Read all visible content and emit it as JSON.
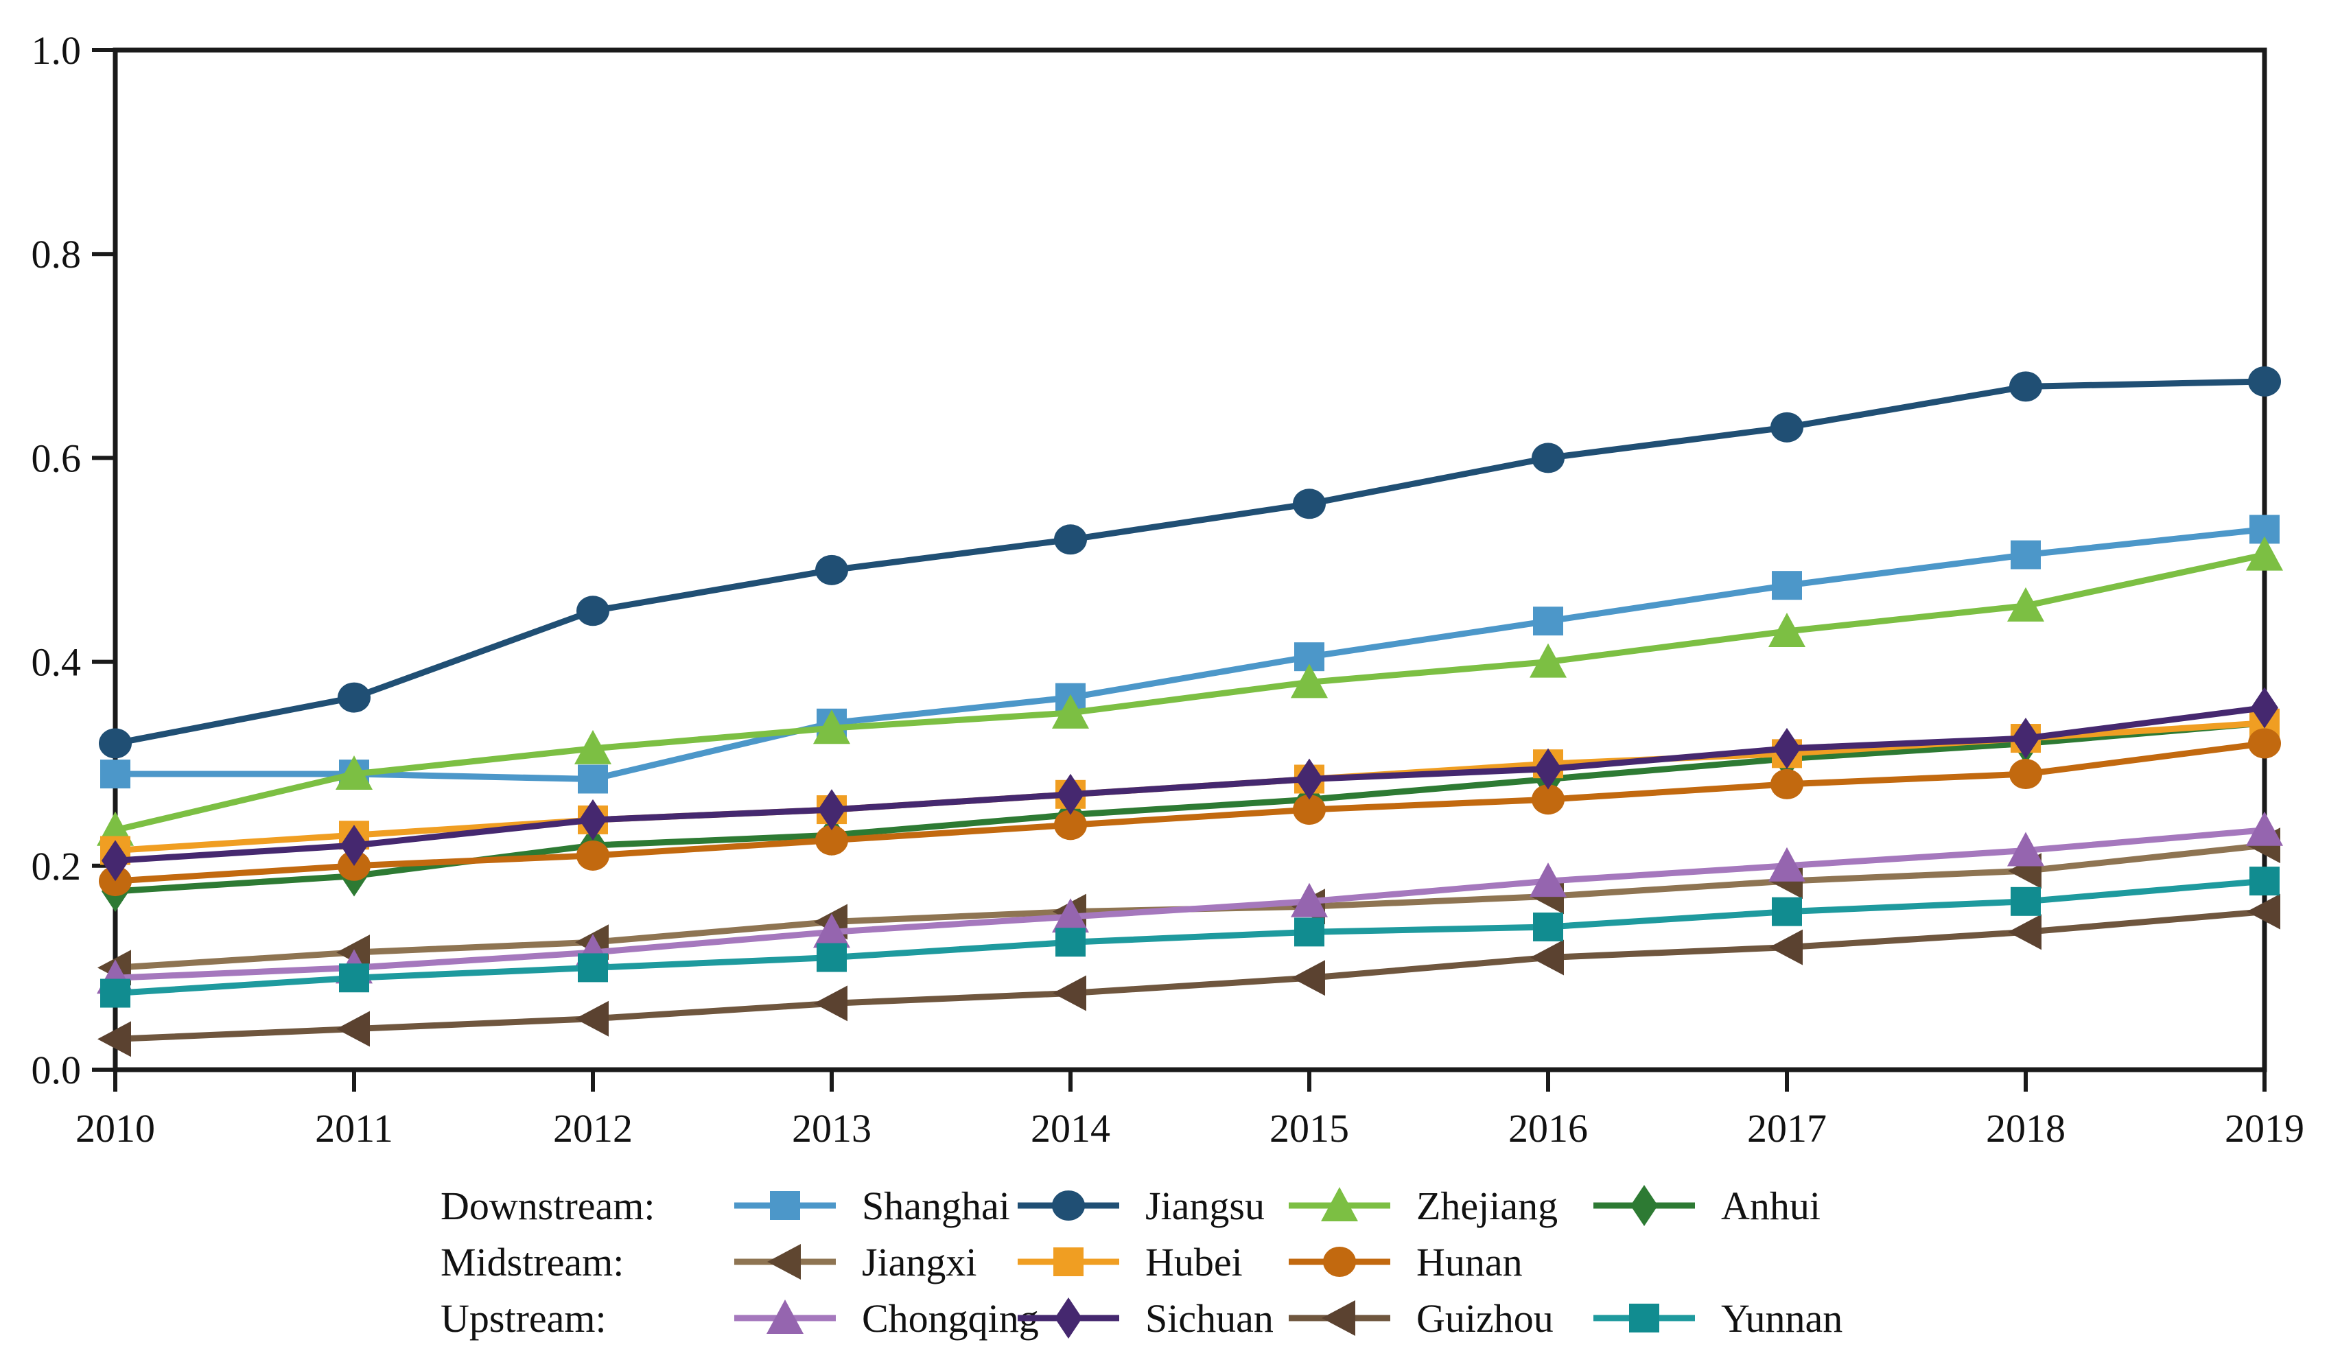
{
  "figure": {
    "background": "#ffffff",
    "text_color": "#111111",
    "axis_color": "#1a1a1a"
  },
  "chart_data": {
    "type": "line",
    "title": "",
    "xlabel": "",
    "ylabel": "",
    "grid": false,
    "legend_position": "bottom",
    "ylim": [
      0,
      1
    ],
    "x": [
      "2010",
      "2011",
      "2012",
      "2013",
      "2014",
      "2015",
      "2016",
      "2017",
      "2018",
      "2019"
    ],
    "yticks": [
      {
        "v": 0.0,
        "label": "0.0"
      },
      {
        "v": 0.2,
        "label": "0.2"
      },
      {
        "v": 0.4,
        "label": "0.4"
      },
      {
        "v": 0.6,
        "label": "0.6"
      },
      {
        "v": 0.8,
        "label": "0.8"
      },
      {
        "v": 1.0,
        "label": "1.0"
      }
    ],
    "groups": [
      {
        "label": "Downstream:",
        "series": [
          {
            "name": "Shanghai",
            "marker": "square",
            "color": "#4C97C9",
            "marker_color": "#4C97C9",
            "values": [
              0.29,
              0.29,
              0.285,
              0.34,
              0.365,
              0.405,
              0.44,
              0.475,
              0.505,
              0.53
            ]
          },
          {
            "name": "Jiangsu",
            "marker": "circle",
            "color": "#204F74",
            "marker_color": "#204F74",
            "values": [
              0.32,
              0.365,
              0.45,
              0.49,
              0.52,
              0.555,
              0.6,
              0.63,
              0.67,
              0.675
            ]
          },
          {
            "name": "Zhejiang",
            "marker": "triangle",
            "color": "#7CBF43",
            "marker_color": "#7CBF43",
            "values": [
              0.235,
              0.29,
              0.315,
              0.335,
              0.35,
              0.38,
              0.4,
              0.43,
              0.455,
              0.505
            ]
          },
          {
            "name": "Anhui",
            "marker": "diamond",
            "color": "#2D7A33",
            "marker_color": "#2D7A33",
            "values": [
              0.175,
              0.19,
              0.22,
              0.23,
              0.25,
              0.265,
              0.285,
              0.305,
              0.32,
              0.34
            ]
          }
        ]
      },
      {
        "label": "Midstream:",
        "series": [
          {
            "name": "Jiangxi",
            "marker": "triangle-left",
            "color": "#8E7452",
            "marker_color": "#5F4630",
            "values": [
              0.1,
              0.115,
              0.125,
              0.145,
              0.155,
              0.16,
              0.17,
              0.185,
              0.195,
              0.22
            ]
          },
          {
            "name": "Hubei",
            "marker": "square",
            "color": "#F09E22",
            "marker_color": "#F09E22",
            "values": [
              0.215,
              0.23,
              0.245,
              0.255,
              0.27,
              0.285,
              0.3,
              0.31,
              0.325,
              0.34
            ]
          },
          {
            "name": "Hunan",
            "marker": "circle",
            "color": "#C2690F",
            "marker_color": "#C2690F",
            "values": [
              0.185,
              0.2,
              0.21,
              0.225,
              0.24,
              0.255,
              0.265,
              0.28,
              0.29,
              0.32
            ]
          }
        ]
      },
      {
        "label": "Upstream:",
        "series": [
          {
            "name": "Chongqing",
            "marker": "triangle",
            "color": "#A578BD",
            "marker_color": "#9565AF",
            "values": [
              0.09,
              0.1,
              0.115,
              0.135,
              0.15,
              0.165,
              0.185,
              0.2,
              0.215,
              0.235
            ]
          },
          {
            "name": "Sichuan",
            "marker": "diamond",
            "color": "#45286F",
            "marker_color": "#45286F",
            "values": [
              0.205,
              0.22,
              0.245,
              0.255,
              0.27,
              0.285,
              0.295,
              0.315,
              0.325,
              0.355
            ]
          },
          {
            "name": "Guizhou",
            "marker": "triangle-left",
            "color": "#6F563E",
            "marker_color": "#5B4230",
            "values": [
              0.03,
              0.04,
              0.05,
              0.065,
              0.075,
              0.09,
              0.11,
              0.12,
              0.135,
              0.155
            ]
          },
          {
            "name": "Yunnan",
            "marker": "square",
            "color": "#1E9A9E",
            "marker_color": "#118C90",
            "values": [
              0.075,
              0.09,
              0.1,
              0.11,
              0.125,
              0.135,
              0.14,
              0.155,
              0.165,
              0.185
            ]
          }
        ]
      }
    ]
  }
}
